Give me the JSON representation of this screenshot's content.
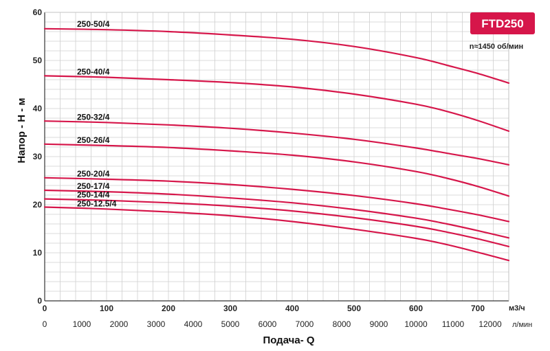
{
  "chart_data": {
    "type": "line",
    "title": "",
    "badge": "FTD250",
    "speed_note": "n≈1450 об/мин",
    "xlabel": "Подача- Q",
    "ylabel": "Напор - Н - м",
    "x_unit_primary": "м3/ч",
    "x_unit_secondary": "л/мин",
    "xlim": [
      0,
      750
    ],
    "ylim": [
      0,
      60
    ],
    "x_ticks_primary": [
      0,
      100,
      200,
      300,
      400,
      500,
      600,
      700
    ],
    "x_ticks_secondary": [
      0,
      1000,
      2000,
      3000,
      4000,
      5000,
      6000,
      7000,
      8000,
      9000,
      10000,
      11000,
      12000
    ],
    "y_ticks": [
      0,
      10,
      20,
      30,
      40,
      50,
      60
    ],
    "grid": true,
    "line_color": "#d6164a",
    "badge_color": "#d6164a",
    "series": [
      {
        "name": "250-50/4",
        "x": [
          0,
          100,
          200,
          300,
          400,
          500,
          600,
          650,
          700,
          750
        ],
        "y": [
          56.6,
          56.4,
          56.0,
          55.3,
          54.4,
          52.9,
          50.6,
          49.0,
          47.3,
          45.3
        ]
      },
      {
        "name": "250-40/4",
        "x": [
          0,
          100,
          200,
          300,
          400,
          500,
          600,
          650,
          700,
          750
        ],
        "y": [
          46.8,
          46.5,
          46.0,
          45.4,
          44.5,
          43.0,
          40.9,
          39.4,
          37.5,
          35.3
        ]
      },
      {
        "name": "250-32/4",
        "x": [
          0,
          100,
          200,
          300,
          400,
          500,
          600,
          650,
          700,
          750
        ],
        "y": [
          37.4,
          37.1,
          36.6,
          35.9,
          34.9,
          33.6,
          31.8,
          30.7,
          29.6,
          28.3
        ]
      },
      {
        "name": "250-26/4",
        "x": [
          0,
          100,
          200,
          300,
          400,
          500,
          600,
          650,
          700,
          750
        ],
        "y": [
          32.6,
          32.3,
          31.9,
          31.2,
          30.3,
          28.9,
          26.9,
          25.5,
          23.8,
          21.8
        ]
      },
      {
        "name": "250-20/4",
        "x": [
          0,
          100,
          200,
          300,
          400,
          500,
          600,
          650,
          700,
          750
        ],
        "y": [
          25.6,
          25.3,
          24.9,
          24.2,
          23.2,
          21.9,
          20.2,
          19.1,
          17.9,
          16.5
        ]
      },
      {
        "name": "250-17/4",
        "x": [
          0,
          100,
          200,
          300,
          400,
          500,
          600,
          650,
          700,
          750
        ],
        "y": [
          23.0,
          22.7,
          22.2,
          21.4,
          20.4,
          19.0,
          17.2,
          16.0,
          14.6,
          13.1
        ]
      },
      {
        "name": "250-14/4",
        "x": [
          0,
          100,
          200,
          300,
          400,
          500,
          600,
          650,
          700,
          750
        ],
        "y": [
          21.2,
          20.9,
          20.4,
          19.7,
          18.7,
          17.3,
          15.5,
          14.3,
          12.9,
          11.3
        ]
      },
      {
        "name": "250-12.5/4",
        "x": [
          0,
          100,
          200,
          300,
          400,
          500,
          600,
          650,
          700,
          750
        ],
        "y": [
          19.5,
          19.1,
          18.5,
          17.7,
          16.5,
          14.9,
          13.0,
          11.7,
          10.1,
          8.4
        ]
      }
    ]
  }
}
